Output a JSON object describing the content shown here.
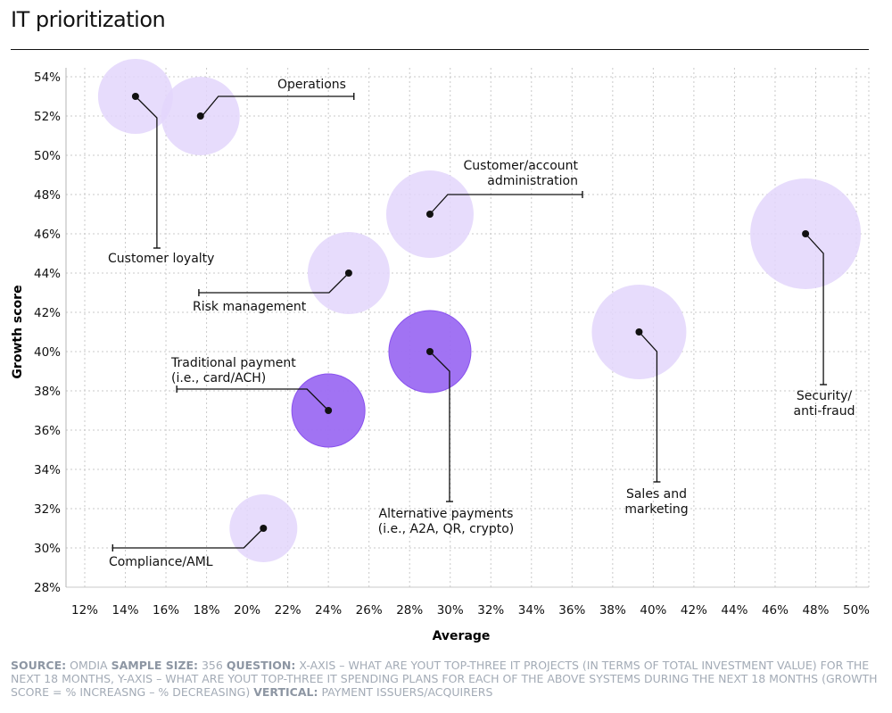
{
  "title": "IT prioritization",
  "chart_data": {
    "type": "scatter",
    "bubble": true,
    "xlabel": "Average",
    "ylabel": "Growth score",
    "xlim": [
      12,
      50
    ],
    "ylim": [
      28,
      54
    ],
    "xticks": [
      "12%",
      "14%",
      "16%",
      "18%",
      "20%",
      "22%",
      "24%",
      "26%",
      "28%",
      "30%",
      "32%",
      "34%",
      "36%",
      "38%",
      "40%",
      "42%",
      "44%",
      "46%",
      "48%",
      "50%"
    ],
    "yticks": [
      "28%",
      "30%",
      "32%",
      "34%",
      "36%",
      "38%",
      "40%",
      "42%",
      "44%",
      "46%",
      "48%",
      "50%",
      "52%",
      "54%"
    ],
    "grid": true,
    "colors": {
      "light_bubble": "#e3d6fb",
      "dark_bubble": "#9c6cf2",
      "dark_bubble_edge": "#8a52ee"
    },
    "points": [
      {
        "label": "Customer loyalty",
        "x": 14.5,
        "y": 53.0,
        "emphasis": false
      },
      {
        "label": "Operations",
        "x": 17.7,
        "y": 52.0,
        "emphasis": false
      },
      {
        "label": "Customer/account administration",
        "x": 29.0,
        "y": 47.0,
        "emphasis": false
      },
      {
        "label": "Security/ anti-fraud",
        "x": 47.5,
        "y": 46.0,
        "emphasis": false
      },
      {
        "label": "Risk management",
        "x": 25.0,
        "y": 44.0,
        "emphasis": false
      },
      {
        "label": "Sales and marketing",
        "x": 39.3,
        "y": 41.0,
        "emphasis": false
      },
      {
        "label": "Alternative payments (i.e., A2A, QR, crypto)",
        "x": 29.0,
        "y": 40.0,
        "emphasis": true
      },
      {
        "label": "Traditional payment (i.e., card/ACH)",
        "x": 24.0,
        "y": 37.0,
        "emphasis": true
      },
      {
        "label": "Compliance/AML",
        "x": 20.8,
        "y": 31.0,
        "emphasis": false
      }
    ],
    "annotations": [
      {
        "lines": [
          "Customer loyalty"
        ]
      },
      {
        "lines": [
          "Operations"
        ]
      },
      {
        "lines": [
          "Customer/account",
          "administration"
        ]
      },
      {
        "lines": [
          "Security/",
          "anti-fraud"
        ]
      },
      {
        "lines": [
          "Risk management"
        ]
      },
      {
        "lines": [
          "Sales and",
          "marketing"
        ]
      },
      {
        "lines": [
          "Alternative payments",
          "(i.e., A2A, QR, crypto)"
        ]
      },
      {
        "lines": [
          "Traditional payment",
          "(i.e., card/ACH)"
        ]
      },
      {
        "lines": [
          "Compliance/AML"
        ]
      }
    ]
  },
  "source": {
    "source_label": "SOURCE:",
    "source_text": "OMDIA",
    "sample_label": "SAMPLE SIZE:",
    "sample_text": "356",
    "question_label": "QUESTION:",
    "question_text": "X-AXIS – WHAT ARE YOUT TOP-THREE IT PROJECTS (IN TERMS OF TOTAL INVESTMENT VALUE) FOR THE NEXT 18 MONTHS, Y-AXIS – WHAT ARE YOUT TOP-THREE IT SPENDING PLANS FOR EACH OF THE ABOVE SYSTEMS DURING THE NEXT 18 MONTHS (GROWTH SCORE = % INCREASNG – % DECREASING)",
    "vertical_label": "VERTICAL:",
    "vertical_text": "PAYMENT ISSUERS/ACQUIRERS"
  }
}
